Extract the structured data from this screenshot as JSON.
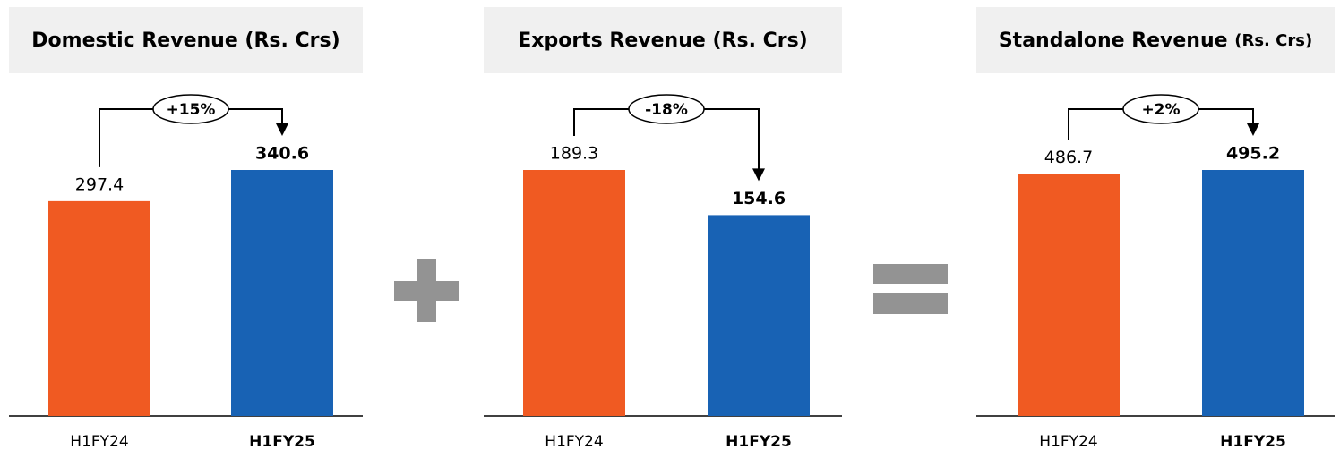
{
  "chart_data": [
    {
      "type": "bar",
      "title": "Domestic Revenue",
      "unit": "(Rs. Crs)",
      "categories": [
        "H1FY24",
        "H1FY25"
      ],
      "values": [
        297.4,
        340.6
      ],
      "colors": [
        "#f05a22",
        "#1862b4"
      ],
      "change": "+15%"
    },
    {
      "type": "bar",
      "title": "Exports Revenue",
      "unit": "(Rs. Crs)",
      "categories": [
        "H1FY24",
        "H1FY25"
      ],
      "values": [
        189.3,
        154.6
      ],
      "colors": [
        "#f05a22",
        "#1862b4"
      ],
      "change": "-18%"
    },
    {
      "type": "bar",
      "title": "Standalone Revenue",
      "unit": "(Rs. Crs)",
      "categories": [
        "H1FY24",
        "H1FY25"
      ],
      "values": [
        486.7,
        495.2
      ],
      "colors": [
        "#f05a22",
        "#1862b4"
      ],
      "change": "+2%"
    }
  ]
}
